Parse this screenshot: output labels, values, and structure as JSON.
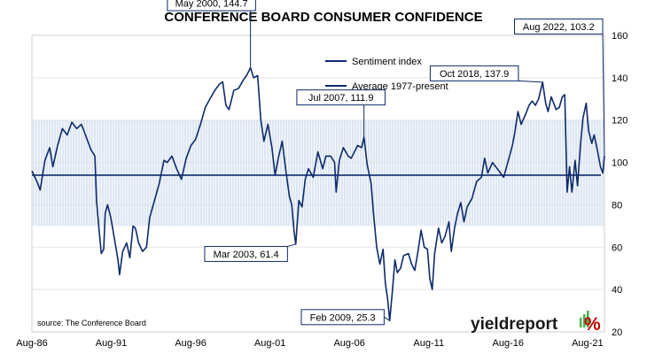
{
  "chart_data": {
    "type": "line",
    "title": "CONFERENCE BOARD CONSUMER CONFIDENCE",
    "ylim": [
      20,
      160
    ],
    "y_ticks": [
      20,
      40,
      60,
      80,
      100,
      120,
      140,
      160
    ],
    "x_range": [
      1986.58,
      2022.65
    ],
    "x_ticks": [
      {
        "label": "Aug-86",
        "x": 1986.58
      },
      {
        "label": "Aug-91",
        "x": 1991.58
      },
      {
        "label": "Aug-96",
        "x": 1996.58
      },
      {
        "label": "Aug-01",
        "x": 2001.58
      },
      {
        "label": "Aug-06",
        "x": 2006.58
      },
      {
        "label": "Aug-11",
        "x": 2011.58
      },
      {
        "label": "Aug-16",
        "x": 2016.58
      },
      {
        "label": "Aug-21",
        "x": 2021.58
      }
    ],
    "band": {
      "low": 70,
      "high": 120
    },
    "average_value": 94,
    "legend": {
      "placement": "top-center",
      "entries": [
        "Sentiment index",
        "Average 1977-present"
      ]
    },
    "series": [
      {
        "name": "Sentiment index",
        "color": "#0d2a6b",
        "points": [
          [
            1986.58,
            96
          ],
          [
            1986.9,
            91
          ],
          [
            1987.1,
            87
          ],
          [
            1987.4,
            101
          ],
          [
            1987.7,
            107
          ],
          [
            1987.9,
            98
          ],
          [
            1988.2,
            108
          ],
          [
            1988.5,
            116
          ],
          [
            1988.8,
            113
          ],
          [
            1989.1,
            119
          ],
          [
            1989.4,
            116
          ],
          [
            1989.7,
            118
          ],
          [
            1990.0,
            112
          ],
          [
            1990.3,
            106
          ],
          [
            1990.55,
            103
          ],
          [
            1990.65,
            82
          ],
          [
            1990.8,
            69
          ],
          [
            1990.95,
            57
          ],
          [
            1991.1,
            59
          ],
          [
            1991.2,
            76
          ],
          [
            1991.35,
            80
          ],
          [
            1991.55,
            74
          ],
          [
            1991.8,
            63
          ],
          [
            1992.0,
            54
          ],
          [
            1992.1,
            47
          ],
          [
            1992.3,
            58
          ],
          [
            1992.55,
            62
          ],
          [
            1992.75,
            55
          ],
          [
            1992.95,
            70
          ],
          [
            1993.1,
            69
          ],
          [
            1993.3,
            62
          ],
          [
            1993.55,
            58
          ],
          [
            1993.8,
            60
          ],
          [
            1994.0,
            74
          ],
          [
            1994.3,
            82
          ],
          [
            1994.6,
            90
          ],
          [
            1994.9,
            101
          ],
          [
            1995.1,
            100
          ],
          [
            1995.4,
            103
          ],
          [
            1995.7,
            97
          ],
          [
            1996.0,
            92
          ],
          [
            1996.3,
            102
          ],
          [
            1996.6,
            108
          ],
          [
            1996.9,
            111
          ],
          [
            1997.2,
            118
          ],
          [
            1997.5,
            126
          ],
          [
            1997.8,
            130
          ],
          [
            1998.1,
            134
          ],
          [
            1998.4,
            137
          ],
          [
            1998.6,
            138
          ],
          [
            1998.8,
            127
          ],
          [
            1999.0,
            125
          ],
          [
            1999.3,
            134
          ],
          [
            1999.6,
            135
          ],
          [
            1999.9,
            139
          ],
          [
            2000.1,
            141
          ],
          [
            2000.35,
            144.7
          ],
          [
            2000.55,
            140
          ],
          [
            2000.8,
            141
          ],
          [
            2001.0,
            120
          ],
          [
            2001.2,
            110
          ],
          [
            2001.45,
            118
          ],
          [
            2001.7,
            107
          ],
          [
            2001.9,
            94
          ],
          [
            2002.1,
            102
          ],
          [
            2002.35,
            110
          ],
          [
            2002.6,
            95
          ],
          [
            2002.8,
            84
          ],
          [
            2002.95,
            80
          ],
          [
            2003.1,
            67
          ],
          [
            2003.2,
            61.4
          ],
          [
            2003.4,
            82
          ],
          [
            2003.6,
            79
          ],
          [
            2003.8,
            92
          ],
          [
            2004.0,
            97
          ],
          [
            2004.3,
            93
          ],
          [
            2004.6,
            105
          ],
          [
            2004.9,
            97
          ],
          [
            2005.1,
            103
          ],
          [
            2005.4,
            103
          ],
          [
            2005.65,
            100
          ],
          [
            2005.75,
            86
          ],
          [
            2005.95,
            101
          ],
          [
            2006.2,
            107
          ],
          [
            2006.5,
            103
          ],
          [
            2006.7,
            102
          ],
          [
            2006.9,
            105
          ],
          [
            2007.1,
            108
          ],
          [
            2007.35,
            107
          ],
          [
            2007.5,
            111.9
          ],
          [
            2007.7,
            99
          ],
          [
            2007.95,
            90
          ],
          [
            2008.1,
            76
          ],
          [
            2008.3,
            60
          ],
          [
            2008.5,
            52
          ],
          [
            2008.7,
            59
          ],
          [
            2008.85,
            43
          ],
          [
            2009.0,
            35
          ],
          [
            2009.12,
            25.3
          ],
          [
            2009.3,
            40
          ],
          [
            2009.45,
            54
          ],
          [
            2009.6,
            48
          ],
          [
            2009.8,
            50
          ],
          [
            2010.0,
            56
          ],
          [
            2010.3,
            57
          ],
          [
            2010.5,
            52
          ],
          [
            2010.7,
            49
          ],
          [
            2010.9,
            58
          ],
          [
            2011.1,
            68
          ],
          [
            2011.3,
            60
          ],
          [
            2011.5,
            59
          ],
          [
            2011.65,
            45
          ],
          [
            2011.8,
            40
          ],
          [
            2011.95,
            57
          ],
          [
            2012.2,
            69
          ],
          [
            2012.4,
            62
          ],
          [
            2012.6,
            65
          ],
          [
            2012.85,
            72
          ],
          [
            2013.0,
            58
          ],
          [
            2013.2,
            69
          ],
          [
            2013.4,
            76
          ],
          [
            2013.6,
            81
          ],
          [
            2013.8,
            72
          ],
          [
            2014.0,
            79
          ],
          [
            2014.3,
            83
          ],
          [
            2014.6,
            91
          ],
          [
            2014.9,
            93
          ],
          [
            2015.1,
            102
          ],
          [
            2015.3,
            95
          ],
          [
            2015.6,
            100
          ],
          [
            2015.8,
            98
          ],
          [
            2016.0,
            96
          ],
          [
            2016.3,
            93
          ],
          [
            2016.6,
            101
          ],
          [
            2016.85,
            108
          ],
          [
            2017.0,
            114
          ],
          [
            2017.2,
            124
          ],
          [
            2017.4,
            118
          ],
          [
            2017.7,
            123
          ],
          [
            2017.9,
            127
          ],
          [
            2018.1,
            129
          ],
          [
            2018.3,
            127
          ],
          [
            2018.5,
            130
          ],
          [
            2018.75,
            137.9
          ],
          [
            2018.95,
            128
          ],
          [
            2019.1,
            124
          ],
          [
            2019.3,
            131
          ],
          [
            2019.6,
            125
          ],
          [
            2019.8,
            126
          ],
          [
            2020.0,
            131
          ],
          [
            2020.15,
            132
          ],
          [
            2020.3,
            86
          ],
          [
            2020.45,
            98
          ],
          [
            2020.6,
            86
          ],
          [
            2020.8,
            101
          ],
          [
            2020.95,
            89
          ],
          [
            2021.15,
            109
          ],
          [
            2021.3,
            121
          ],
          [
            2021.5,
            128
          ],
          [
            2021.65,
            115
          ],
          [
            2021.85,
            109
          ],
          [
            2022.0,
            113
          ],
          [
            2022.2,
            106
          ],
          [
            2022.4,
            98
          ],
          [
            2022.55,
            95
          ],
          [
            2022.65,
            103.2
          ]
        ]
      },
      {
        "name": "Average 1977-present",
        "color": "#0d2a6b",
        "constant": 94
      }
    ],
    "annotations": [
      {
        "label": "May 2000, 144.7",
        "x": 2000.35,
        "y": 144.7
      },
      {
        "label": "Mar 2003, 61.4",
        "x": 2003.2,
        "y": 61.4
      },
      {
        "label": "Jul 2007, 111.9",
        "x": 2007.5,
        "y": 111.9
      },
      {
        "label": "Feb 2009, 25.3",
        "x": 2009.12,
        "y": 25.3
      },
      {
        "label": "Oct 2018, 137.9",
        "x": 2018.75,
        "y": 137.9
      },
      {
        "label": "Aug 2022, 103.2",
        "x": 2022.65,
        "y": 103.2
      }
    ],
    "source_text": "source: The Conference Board"
  },
  "branding": {
    "name": "yieldreport",
    "pct_glyph": "%",
    "colors": {
      "text": "#1a1a1a",
      "pct": "#c00000",
      "bars": "#4caf50"
    }
  },
  "colors": {
    "line": "#0d2a6b",
    "band": "#dde6f3",
    "band_stripe": "#ffffff"
  }
}
